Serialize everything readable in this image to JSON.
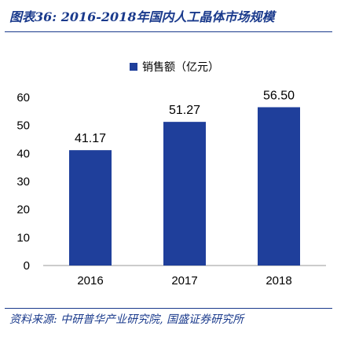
{
  "header": {
    "title": "图表36: 2016-2018年国内人工晶体市场规模"
  },
  "footer": {
    "source": "资料来源: 中研普华产业研究院, 国盛证券研究所"
  },
  "colors": {
    "bar": "#1f3f9b",
    "axis": "#999999",
    "accent": "#1a3a8c"
  },
  "chart_data": {
    "type": "bar",
    "categories": [
      "2016",
      "2017",
      "2018"
    ],
    "series": [
      {
        "name": "销售额（亿元）",
        "values": [
          41.17,
          51.27,
          56.5
        ],
        "labels": [
          "41.17",
          "51.27",
          "56.50"
        ]
      }
    ],
    "ylim": [
      0,
      60
    ],
    "yticks": [
      0,
      10,
      20,
      30,
      40,
      50,
      60
    ],
    "grid": false,
    "legend": "top"
  }
}
